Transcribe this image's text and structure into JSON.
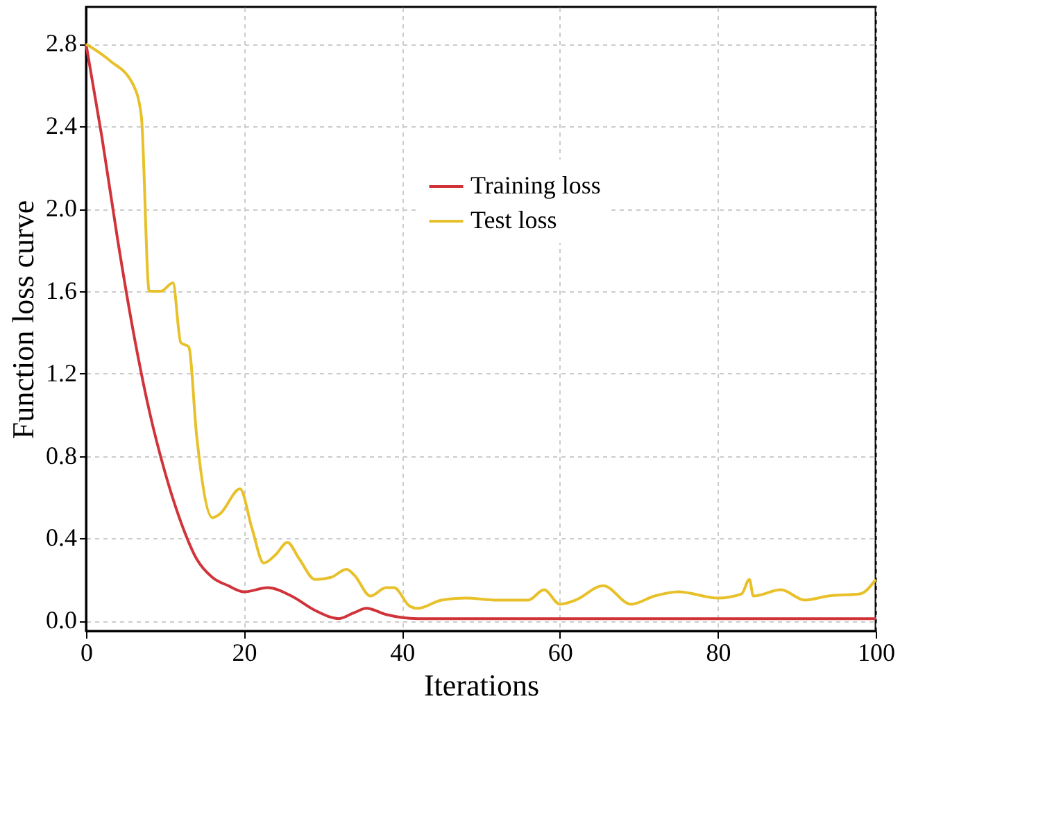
{
  "chart_data": {
    "type": "line",
    "xlabel": "Iterations",
    "ylabel": "Function loss curve",
    "xlim": [
      0,
      100
    ],
    "xticks": [
      0,
      20,
      40,
      60,
      80,
      100
    ],
    "ylim": [
      -0.05,
      2.98
    ],
    "yticks": [
      {
        "value": 0,
        "label": "0.0"
      },
      0.4,
      0.8,
      1.2,
      1.6,
      {
        "value": 2,
        "label": "2.0"
      },
      2.4,
      2.8
    ],
    "grid": true,
    "legend": "top",
    "line_style": "solid",
    "marker": "none",
    "series": [
      {
        "name": "Training loss",
        "color": "#d0343a",
        "x": [
          0,
          2,
          4,
          6,
          8,
          10,
          12,
          14,
          16,
          18,
          20,
          23,
          26,
          29,
          32,
          34,
          35.5,
          38,
          42,
          100
        ],
        "values": [
          2.8,
          2.35,
          1.85,
          1.4,
          1.02,
          0.72,
          0.48,
          0.3,
          0.21,
          0.17,
          0.14,
          0.16,
          0.12,
          0.05,
          0.01,
          0.04,
          0.06,
          0.03,
          0.01,
          0.01
        ]
      },
      {
        "name": "Test loss",
        "color": "#e8c12a",
        "x": [
          0,
          3,
          6,
          7,
          8,
          9.5,
          11,
          12,
          13,
          14,
          16,
          17,
          19.5,
          21,
          22.5,
          24,
          25.5,
          27,
          29,
          31,
          33,
          34,
          36,
          38,
          39,
          41,
          42,
          45,
          48,
          52,
          56,
          58,
          60,
          62,
          65.5,
          69,
          72,
          75,
          80,
          83,
          84,
          84.5,
          88,
          91,
          94,
          98,
          100
        ],
        "values": [
          2.8,
          2.72,
          2.6,
          2.45,
          1.6,
          1.6,
          1.64,
          1.35,
          1.33,
          0.9,
          0.5,
          0.52,
          0.64,
          0.45,
          0.28,
          0.32,
          0.38,
          0.3,
          0.2,
          0.21,
          0.25,
          0.22,
          0.12,
          0.16,
          0.16,
          0.07,
          0.06,
          0.1,
          0.11,
          0.1,
          0.1,
          0.15,
          0.08,
          0.1,
          0.17,
          0.08,
          0.12,
          0.14,
          0.11,
          0.13,
          0.2,
          0.12,
          0.15,
          0.1,
          0.12,
          0.13,
          0.2
        ]
      }
    ]
  }
}
